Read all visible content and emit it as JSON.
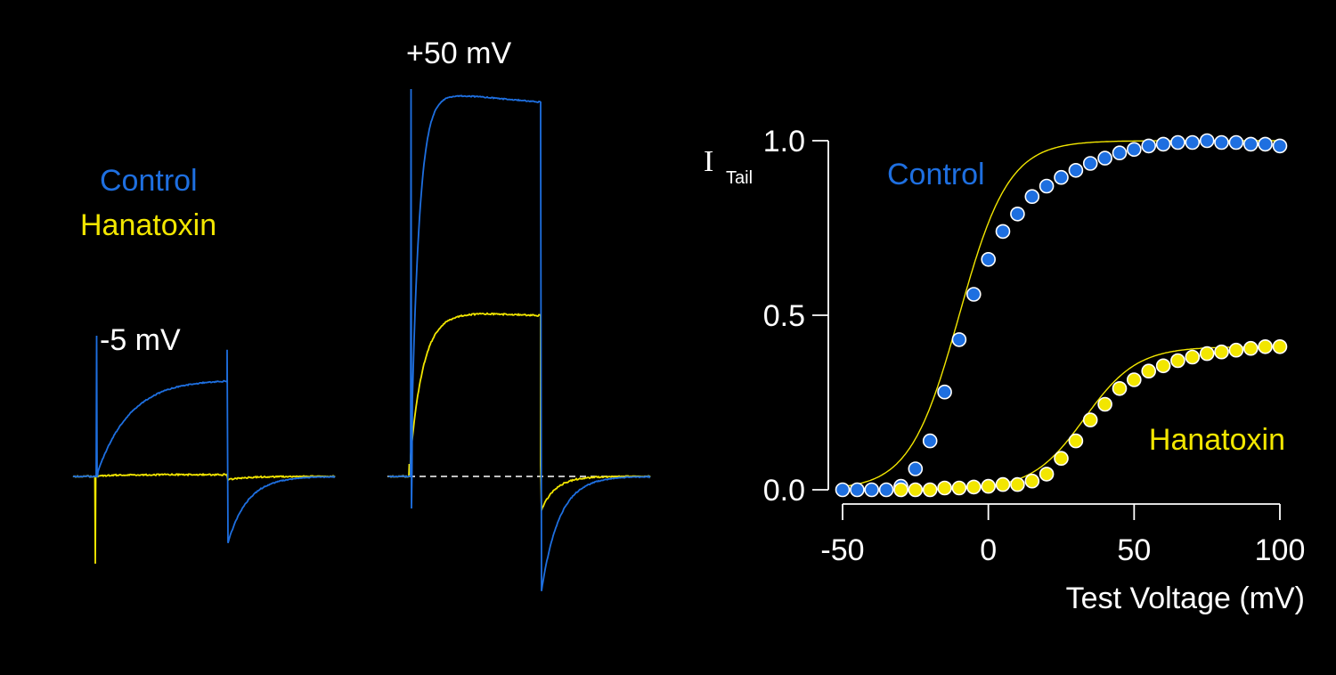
{
  "colors": {
    "background": "#000000",
    "control": "#1e6fe0",
    "hanatoxin": "#f2e600",
    "text": "#ffffff",
    "axis": "#ffffff"
  },
  "traces": {
    "legend": {
      "control": "Control",
      "hanatoxin": "Hanatoxin"
    },
    "panel_minus5": {
      "label": "-5 mV",
      "control_peak": 0.25,
      "hanatoxin_peak": 0.0
    },
    "panel_plus50": {
      "label": "+50 mV",
      "control_peak": 1.0,
      "hanatoxin_peak": 0.43
    }
  },
  "chart_data": {
    "type": "scatter",
    "title": "",
    "xlabel": "Test Voltage (mV)",
    "ylabel_main": "I",
    "ylabel_sub": "Tail",
    "xlim": [
      -50,
      100
    ],
    "ylim": [
      0,
      1.0
    ],
    "x_ticks": [
      -50,
      0,
      50,
      100
    ],
    "x_tick_labels": [
      "-50",
      "0",
      "50",
      "100"
    ],
    "y_ticks": [
      0,
      0.5,
      1.0
    ],
    "y_tick_labels": [
      "0.0",
      "0.5",
      "1.0"
    ],
    "grid": false,
    "series": [
      {
        "name": "Control",
        "fit": {
          "v_half": -10,
          "slope": 8.5,
          "max": 1.0
        },
        "points": [
          [
            -50,
            0.0
          ],
          [
            -45,
            0.0
          ],
          [
            -40,
            0.0
          ],
          [
            -35,
            0.0
          ],
          [
            -30,
            0.01
          ],
          [
            -25,
            0.06
          ],
          [
            -20,
            0.14
          ],
          [
            -15,
            0.28
          ],
          [
            -10,
            0.43
          ],
          [
            -5,
            0.56
          ],
          [
            0,
            0.66
          ],
          [
            5,
            0.74
          ],
          [
            10,
            0.79
          ],
          [
            15,
            0.84
          ],
          [
            20,
            0.87
          ],
          [
            25,
            0.895
          ],
          [
            30,
            0.915
          ],
          [
            35,
            0.935
          ],
          [
            40,
            0.95
          ],
          [
            45,
            0.965
          ],
          [
            50,
            0.975
          ],
          [
            55,
            0.985
          ],
          [
            60,
            0.99
          ],
          [
            65,
            0.995
          ],
          [
            70,
            0.995
          ],
          [
            75,
            1.0
          ],
          [
            80,
            0.995
          ],
          [
            85,
            0.995
          ],
          [
            90,
            0.99
          ],
          [
            95,
            0.99
          ],
          [
            100,
            0.985
          ]
        ]
      },
      {
        "name": "Hanatoxin",
        "fit": {
          "v_half": 33,
          "slope": 9,
          "max": 0.41
        },
        "points": [
          [
            -30,
            0.0
          ],
          [
            -25,
            0.0
          ],
          [
            -20,
            0.0
          ],
          [
            -15,
            0.005
          ],
          [
            -10,
            0.005
          ],
          [
            -5,
            0.008
          ],
          [
            0,
            0.01
          ],
          [
            5,
            0.015
          ],
          [
            10,
            0.015
          ],
          [
            15,
            0.025
          ],
          [
            20,
            0.045
          ],
          [
            25,
            0.09
          ],
          [
            30,
            0.14
          ],
          [
            35,
            0.2
          ],
          [
            40,
            0.245
          ],
          [
            45,
            0.29
          ],
          [
            50,
            0.315
          ],
          [
            55,
            0.34
          ],
          [
            60,
            0.355
          ],
          [
            65,
            0.37
          ],
          [
            70,
            0.38
          ],
          [
            75,
            0.39
          ],
          [
            80,
            0.395
          ],
          [
            85,
            0.4
          ],
          [
            90,
            0.405
          ],
          [
            95,
            0.41
          ],
          [
            100,
            0.41
          ]
        ]
      }
    ]
  }
}
